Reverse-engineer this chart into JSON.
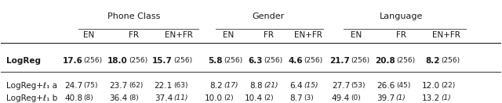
{
  "col_groups": [
    {
      "label": "Phone Class",
      "cols": [
        "EN",
        "FR",
        "EN+FR"
      ]
    },
    {
      "label": "Gender",
      "cols": [
        "EN",
        "FR",
        "EN+FR"
      ]
    },
    {
      "label": "Language",
      "cols": [
        "EN",
        "FR",
        "EN+FR"
      ]
    }
  ],
  "rows": [
    {
      "label": "LogReg",
      "bold_label": true,
      "values": [
        {
          "main": "17.6",
          "sub": "256",
          "bold": true
        },
        {
          "main": "18.0",
          "sub": "256",
          "bold": true
        },
        {
          "main": "15.7",
          "sub": "256",
          "bold": true
        },
        {
          "main": "5.8",
          "sub": "256",
          "bold": true
        },
        {
          "main": "6.3",
          "sub": "256",
          "bold": true
        },
        {
          "main": "4.6",
          "sub": "256",
          "bold": true
        },
        {
          "main": "21.7",
          "sub": "256",
          "bold": true
        },
        {
          "main": "20.8",
          "sub": "256",
          "bold": true
        },
        {
          "main": "8.2",
          "sub": "256",
          "bold": true
        }
      ],
      "separator_above": true,
      "separator_below": true
    },
    {
      "label": "LogReg+ℓ₁ a",
      "bold_label": false,
      "values": [
        {
          "main": "24.7",
          "sub": "75",
          "bold": false
        },
        {
          "main": "23.7",
          "sub": "62",
          "bold": false
        },
        {
          "main": "22.1",
          "sub": "63",
          "bold": false
        },
        {
          "main": "8.2",
          "sub": "17",
          "bold": false,
          "italic_sub": true
        },
        {
          "main": "8.8",
          "sub": "21",
          "bold": false,
          "italic_sub": true
        },
        {
          "main": "6.4",
          "sub": "15",
          "bold": false,
          "italic_sub": true
        },
        {
          "main": "27.7",
          "sub": "53",
          "bold": false
        },
        {
          "main": "26.6",
          "sub": "45",
          "bold": false
        },
        {
          "main": "12.0",
          "sub": "22",
          "bold": false
        }
      ],
      "separator_above": false,
      "separator_below": false
    },
    {
      "label": "LogReg+ℓ₁ b",
      "bold_label": false,
      "values": [
        {
          "main": "40.8",
          "sub": "8",
          "bold": false
        },
        {
          "main": "36.4",
          "sub": "8",
          "bold": false
        },
        {
          "main": "37.4",
          "sub": "11",
          "bold": false,
          "italic_sub": true
        },
        {
          "main": "10.0",
          "sub": "2",
          "bold": false
        },
        {
          "main": "10.4",
          "sub": "2",
          "bold": false
        },
        {
          "main": "8.7",
          "sub": "3",
          "bold": false
        },
        {
          "main": "49.4",
          "sub": "0",
          "bold": false
        },
        {
          "main": "39.7",
          "sub": "1",
          "bold": false,
          "italic_sub": true
        },
        {
          "main": "13.2",
          "sub": "1",
          "bold": false,
          "italic_sub": true
        }
      ],
      "separator_above": false,
      "separator_below": false
    }
  ],
  "bg_color": "#f2f2f2",
  "text_color": "#1a1a1a",
  "font_size": 7.5,
  "header_font_size": 8.0
}
